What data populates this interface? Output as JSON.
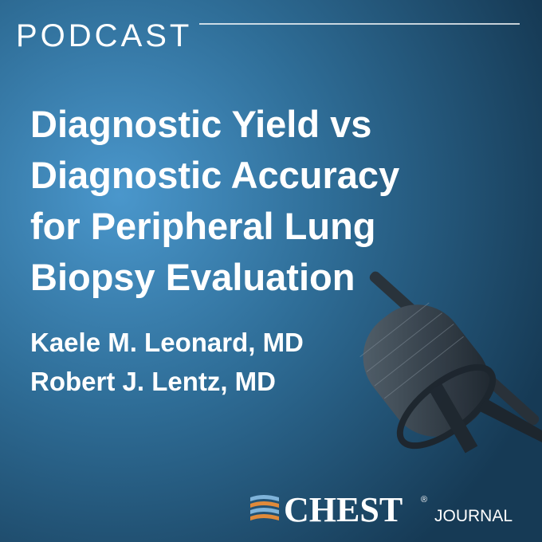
{
  "header": {
    "label": "PODCAST"
  },
  "title": {
    "lines": [
      "Diagnostic Yield vs",
      "Diagnostic Accuracy",
      "for Peripheral Lung",
      "Biopsy Evaluation"
    ]
  },
  "authors": [
    "Kaele M. Leonard, MD",
    "Robert J. Lentz, MD"
  ],
  "logo": {
    "name": "CHEST",
    "mark": "®",
    "suffix": "JOURNAL"
  }
}
